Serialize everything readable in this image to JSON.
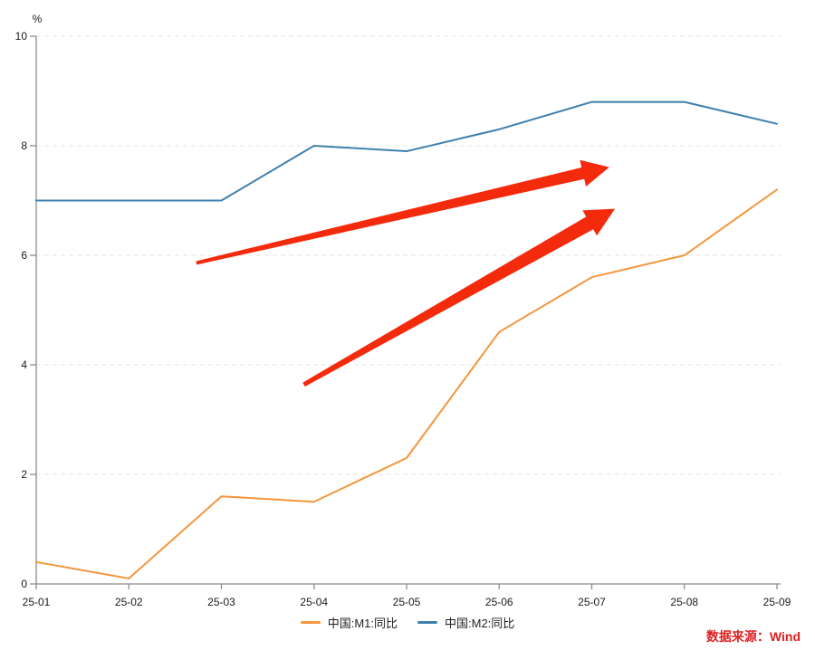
{
  "chart_data": {
    "type": "line",
    "title": "",
    "unit_label": "%",
    "categories": [
      "25-01",
      "25-02",
      "25-03",
      "25-04",
      "25-05",
      "25-06",
      "25-07",
      "25-08",
      "25-09"
    ],
    "series": [
      {
        "name": "中国:M1:同比",
        "color": "#f5953d",
        "values": [
          0.4,
          0.1,
          1.6,
          1.5,
          2.3,
          4.6,
          5.6,
          6.0,
          7.2
        ]
      },
      {
        "name": "中国:M2:同比",
        "color": "#3f7fae",
        "values": [
          7.0,
          7.0,
          7.0,
          8.0,
          7.9,
          8.3,
          8.8,
          8.8,
          8.4
        ]
      }
    ],
    "xlabel": "",
    "ylabel": "%",
    "ylim": [
      0,
      10
    ],
    "y_ticks": [
      0,
      2,
      4,
      6,
      8,
      10
    ],
    "grid": "horizontal-dashed",
    "legend_position": "bottom-center",
    "colors": {
      "axis": "#8c8c8c",
      "tick_label": "#1a1a1a",
      "gridline": "#e4e4e4",
      "arrow": "#f42a0c"
    },
    "annotations": {
      "arrows": [
        {
          "from_x": 1.73,
          "from_y": 5.86,
          "to_x": 6.19,
          "to_y": 7.61,
          "tail_width": 4,
          "shaft_width": 13,
          "head_length": 30,
          "head_width": 30
        },
        {
          "from_x": 2.89,
          "from_y": 3.64,
          "to_x": 6.25,
          "to_y": 6.85,
          "tail_width": 5,
          "shaft_width": 16,
          "head_length": 32,
          "head_width": 32
        }
      ]
    }
  },
  "source": {
    "text": "数据来源：Wind",
    "color": "#e01f1f"
  }
}
